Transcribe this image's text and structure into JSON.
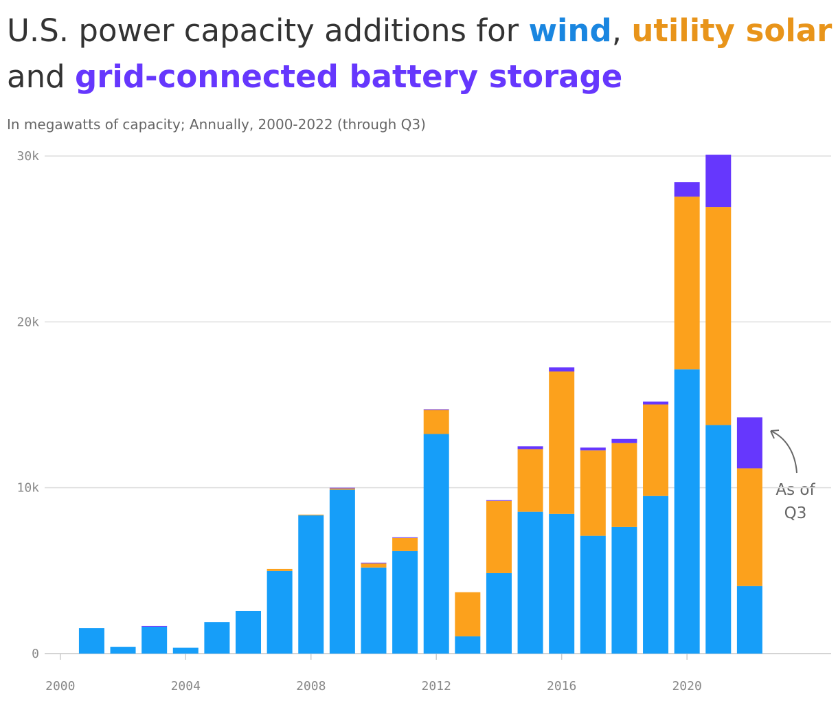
{
  "chart_data": {
    "type": "stacked-bar",
    "title_parts": [
      "U.S. power capacity additions for",
      ",",
      "and"
    ],
    "subtitle": "In megawatts of capacity; Annually, 2000-2022 (through Q3)",
    "x": [
      2001,
      2002,
      2003,
      2004,
      2005,
      2006,
      2007,
      2008,
      2009,
      2010,
      2011,
      2012,
      2013,
      2014,
      2015,
      2016,
      2017,
      2018,
      2019,
      2020,
      2021,
      2022
    ],
    "series": [
      {
        "name": "wind",
        "color": "#169ef9",
        "values": [
          1530,
          410,
          1620,
          350,
          1900,
          2570,
          4980,
          8340,
          9880,
          5190,
          6180,
          13240,
          1040,
          4850,
          8550,
          8420,
          7100,
          7630,
          9500,
          17140,
          13780,
          4070
        ]
      },
      {
        "name": "utility solar",
        "color": "#fca11c",
        "values": [
          0,
          0,
          0,
          0,
          0,
          0,
          120,
          40,
          80,
          250,
          790,
          1450,
          2660,
          4360,
          3780,
          8590,
          5150,
          5060,
          5520,
          10410,
          13150,
          7100
        ]
      },
      {
        "name": "grid-connected battery storage",
        "color": "#6637fd",
        "values": [
          0,
          0,
          40,
          0,
          0,
          0,
          0,
          0,
          40,
          40,
          40,
          40,
          0,
          40,
          170,
          250,
          170,
          250,
          170,
          870,
          3150,
          3070
        ]
      }
    ],
    "title_colors": [
      "#1a86e0",
      "#e8941a",
      "#6637fd"
    ],
    "xlim": [
      1999.5,
      2024.6
    ],
    "xticks": [
      2000,
      2004,
      2008,
      2012,
      2016,
      2020
    ],
    "ylim": [
      0,
      30000
    ],
    "yticks": [
      0,
      {
        "value": 10000,
        "label": "10k"
      },
      {
        "value": 20000,
        "label": "20k"
      },
      {
        "value": 30000,
        "label": "30k"
      }
    ],
    "grid": true,
    "annotation": [
      "As of",
      "Q3"
    ]
  }
}
